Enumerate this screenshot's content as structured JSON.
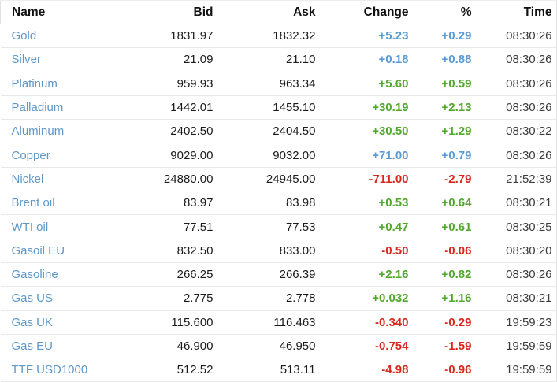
{
  "table": {
    "columns": [
      {
        "key": "name",
        "label": "Name"
      },
      {
        "key": "bid",
        "label": "Bid"
      },
      {
        "key": "ask",
        "label": "Ask"
      },
      {
        "key": "change",
        "label": "Change"
      },
      {
        "key": "pct",
        "label": "%"
      },
      {
        "key": "time",
        "label": "Time"
      }
    ],
    "colors": {
      "name_link_blue": "#5f97c8",
      "up_green": "#52a82c",
      "down_red": "#d8281e",
      "recent_update_blue": "#5b9bd5"
    },
    "rows": [
      {
        "name": "Gold",
        "bid": "1831.97",
        "ask": "1832.32",
        "change": "+5.23",
        "pct": "+0.29",
        "time": "08:30:26",
        "trend": "flash"
      },
      {
        "name": "Silver",
        "bid": "21.09",
        "ask": "21.10",
        "change": "+0.18",
        "pct": "+0.88",
        "time": "08:30:26",
        "trend": "flash"
      },
      {
        "name": "Platinum",
        "bid": "959.93",
        "ask": "963.34",
        "change": "+5.60",
        "pct": "+0.59",
        "time": "08:30:26",
        "trend": "up"
      },
      {
        "name": "Palladium",
        "bid": "1442.01",
        "ask": "1455.10",
        "change": "+30.19",
        "pct": "+2.13",
        "time": "08:30:26",
        "trend": "up"
      },
      {
        "name": "Aluminum",
        "bid": "2402.50",
        "ask": "2404.50",
        "change": "+30.50",
        "pct": "+1.29",
        "time": "08:30:22",
        "trend": "up"
      },
      {
        "name": "Copper",
        "bid": "9029.00",
        "ask": "9032.00",
        "change": "+71.00",
        "pct": "+0.79",
        "time": "08:30:26",
        "trend": "flash"
      },
      {
        "name": "Nickel",
        "bid": "24880.00",
        "ask": "24945.00",
        "change": "-711.00",
        "pct": "-2.79",
        "time": "21:52:39",
        "trend": "down"
      },
      {
        "name": "Brent oil",
        "bid": "83.97",
        "ask": "83.98",
        "change": "+0.53",
        "pct": "+0.64",
        "time": "08:30:21",
        "trend": "up"
      },
      {
        "name": "WTI oil",
        "bid": "77.51",
        "ask": "77.53",
        "change": "+0.47",
        "pct": "+0.61",
        "time": "08:30:25",
        "trend": "up"
      },
      {
        "name": "Gasoil EU",
        "bid": "832.50",
        "ask": "833.00",
        "change": "-0.50",
        "pct": "-0.06",
        "time": "08:30:20",
        "trend": "down"
      },
      {
        "name": "Gasoline",
        "bid": "266.25",
        "ask": "266.39",
        "change": "+2.16",
        "pct": "+0.82",
        "time": "08:30:26",
        "trend": "up"
      },
      {
        "name": "Gas US",
        "bid": "2.775",
        "ask": "2.778",
        "change": "+0.032",
        "pct": "+1.16",
        "time": "08:30:21",
        "trend": "up"
      },
      {
        "name": "Gas UK",
        "bid": "115.600",
        "ask": "116.463",
        "change": "-0.340",
        "pct": "-0.29",
        "time": "19:59:23",
        "trend": "down"
      },
      {
        "name": "Gas EU",
        "bid": "46.900",
        "ask": "46.950",
        "change": "-0.754",
        "pct": "-1.59",
        "time": "19:59:59",
        "trend": "down"
      },
      {
        "name": "TTF USD1000",
        "bid": "512.52",
        "ask": "513.11",
        "change": "-4.98",
        "pct": "-0.96",
        "time": "19:59:59",
        "trend": "down"
      }
    ]
  }
}
